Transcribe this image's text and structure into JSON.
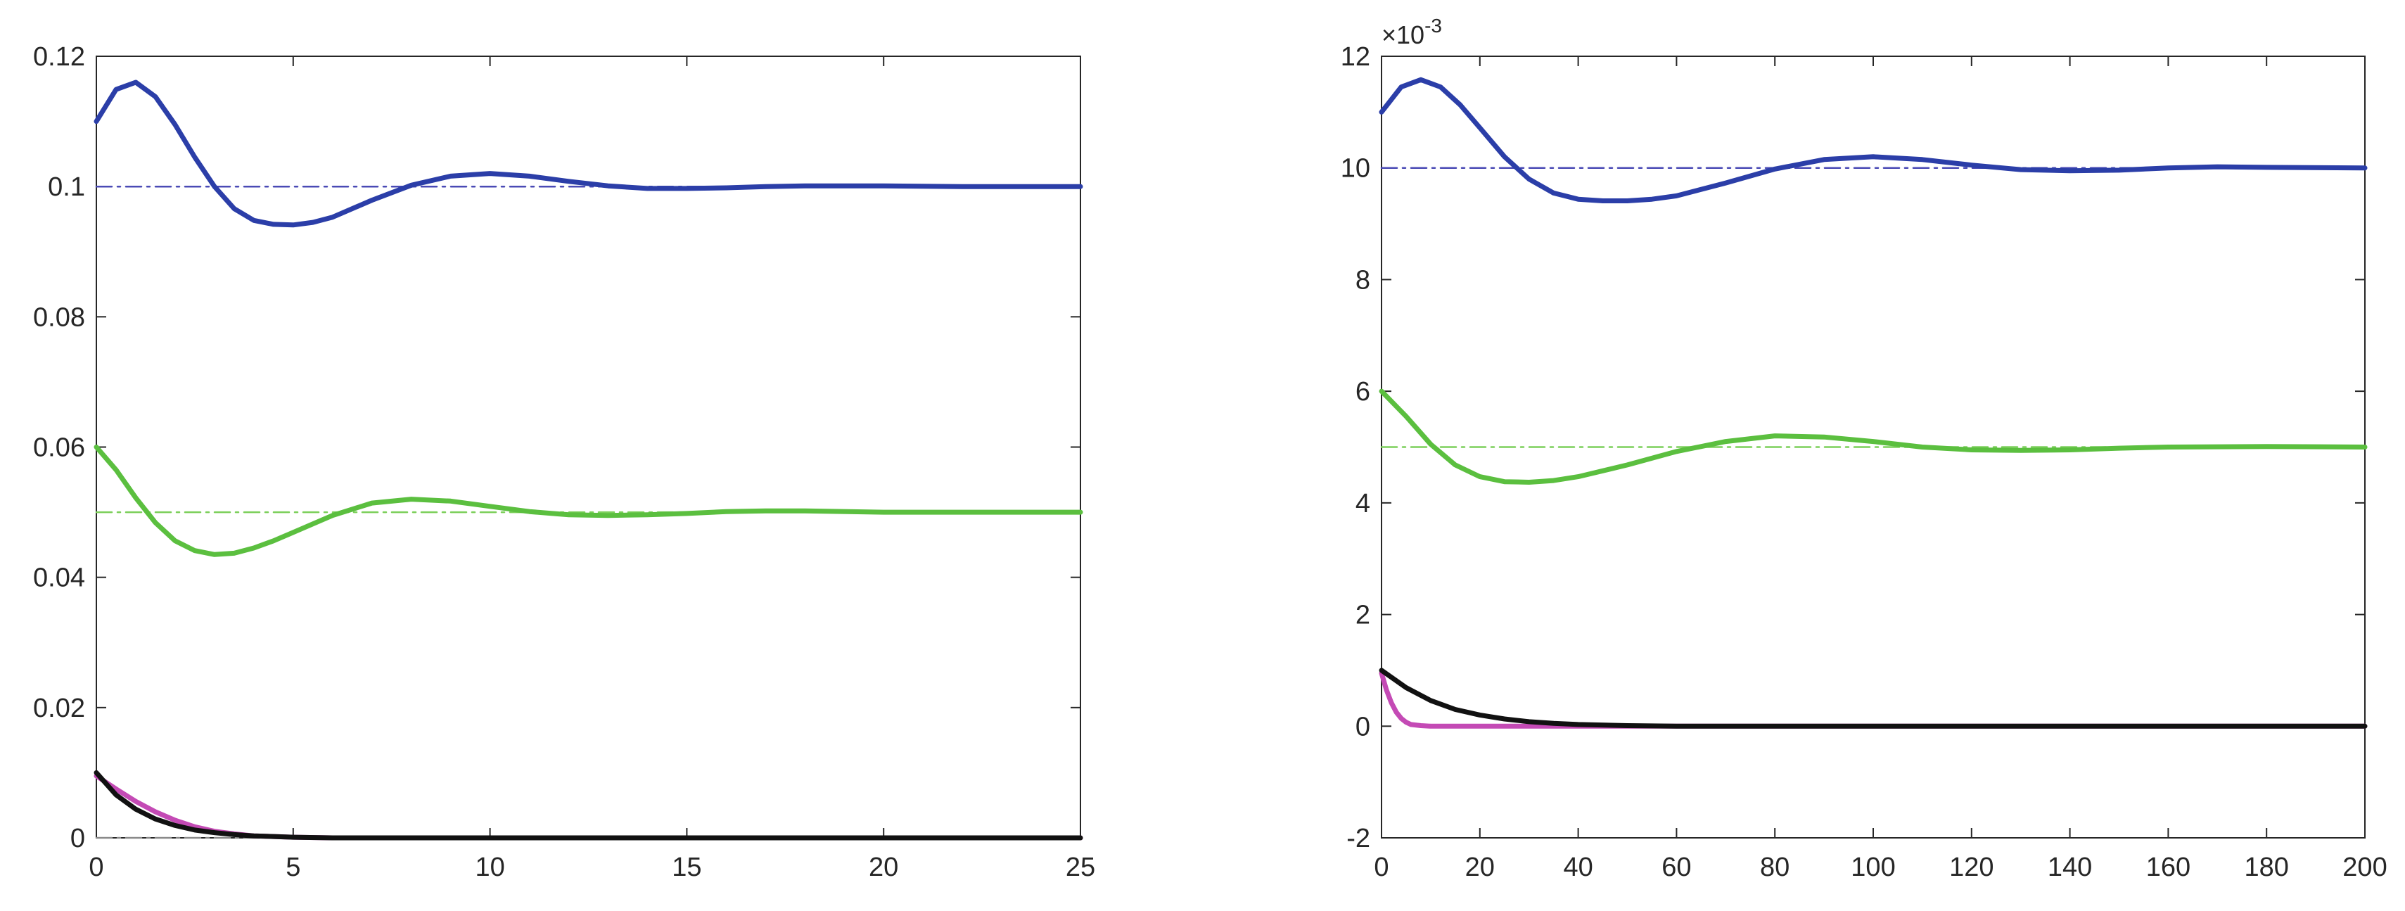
{
  "chart_data": [
    {
      "type": "line",
      "xlim": [
        0,
        25
      ],
      "ylim": [
        0,
        0.12
      ],
      "xticks": [
        0,
        5,
        10,
        15,
        20,
        25
      ],
      "xtick_labels": [
        "0",
        "5",
        "10",
        "15",
        "20",
        "25"
      ],
      "yticks": [
        0,
        0.02,
        0.04,
        0.06,
        0.08,
        0.1,
        0.12
      ],
      "ytick_labels": [
        "0",
        "0.02",
        "0.04",
        "0.06",
        "0.08",
        "0.1",
        "0.12"
      ],
      "grid": false,
      "series": [
        {
          "color": "#2b3ea8",
          "style": "solid",
          "x": [
            0,
            0.5,
            1,
            1.5,
            2,
            2.5,
            3,
            3.5,
            4,
            4.5,
            5,
            5.5,
            6,
            7,
            8,
            9,
            10,
            11,
            12,
            13,
            14,
            15,
            16,
            17,
            18,
            20,
            22,
            25
          ],
          "y": [
            0.11,
            0.1149,
            0.116,
            0.1138,
            0.1095,
            0.1045,
            0.1,
            0.0966,
            0.0948,
            0.0942,
            0.0941,
            0.0945,
            0.0953,
            0.0979,
            0.1002,
            0.1016,
            0.102,
            0.1016,
            0.1008,
            0.1001,
            0.0997,
            0.0997,
            0.0998,
            0.1,
            0.1001,
            0.1001,
            0.1,
            0.1
          ]
        },
        {
          "color": "#5bbf3f",
          "style": "solid",
          "x": [
            0,
            0.5,
            1,
            1.5,
            2,
            2.5,
            3,
            3.5,
            4,
            4.5,
            5,
            6,
            7,
            8,
            9,
            10,
            11,
            12,
            13,
            14,
            15,
            16,
            17,
            18,
            20,
            22,
            25
          ],
          "y": [
            0.06,
            0.0565,
            0.0522,
            0.0484,
            0.0456,
            0.0441,
            0.0435,
            0.0437,
            0.0445,
            0.0456,
            0.0469,
            0.0495,
            0.0514,
            0.052,
            0.0517,
            0.0509,
            0.0501,
            0.0496,
            0.0495,
            0.0496,
            0.0498,
            0.0501,
            0.0502,
            0.0502,
            0.05,
            0.05,
            0.05
          ]
        },
        {
          "color": "#c44ab5",
          "style": "solid",
          "x": [
            0,
            0.5,
            1,
            1.5,
            2,
            2.5,
            3,
            3.5,
            4,
            4.5,
            5,
            6,
            8,
            10,
            15,
            20,
            25
          ],
          "y": [
            0.0095,
            0.0075,
            0.0056,
            0.004,
            0.0027,
            0.0017,
            0.001,
            0.0006,
            0.0003,
            0.0002,
            0.0001,
            0,
            0,
            0,
            0,
            0,
            0
          ]
        },
        {
          "color": "#111111",
          "style": "solid",
          "x": [
            0,
            0.5,
            1,
            1.5,
            2,
            2.5,
            3,
            3.5,
            4,
            4.5,
            5,
            6,
            8,
            10,
            15,
            20,
            25
          ],
          "y": [
            0.01,
            0.0066,
            0.0044,
            0.0029,
            0.0019,
            0.0012,
            0.0008,
            0.0005,
            0.0003,
            0.0002,
            0.0001,
            0,
            0,
            0,
            0,
            0,
            0
          ]
        },
        {
          "color": "#4a4ab5",
          "style": "dashdot",
          "x": [
            0,
            25
          ],
          "y": [
            0.1,
            0.1
          ]
        },
        {
          "color": "#7ccf5a",
          "style": "dashdot",
          "x": [
            0,
            25
          ],
          "y": [
            0.05,
            0.05
          ]
        },
        {
          "color": "#8a8a8a",
          "style": "dashdot",
          "x": [
            0,
            25
          ],
          "y": [
            0,
            0
          ]
        }
      ]
    },
    {
      "type": "line",
      "xlim": [
        0,
        200
      ],
      "ylim": [
        -2,
        12
      ],
      "y_exponent_label": "×10",
      "y_exponent_power": "-3",
      "xticks": [
        0,
        20,
        40,
        60,
        80,
        100,
        120,
        140,
        160,
        180,
        200
      ],
      "xtick_labels": [
        "0",
        "20",
        "40",
        "60",
        "80",
        "100",
        "120",
        "140",
        "160",
        "180",
        "200"
      ],
      "yticks": [
        -2,
        0,
        2,
        4,
        6,
        8,
        10,
        12
      ],
      "ytick_labels": [
        "-2",
        "0",
        "2",
        "4",
        "6",
        "8",
        "10",
        "12"
      ],
      "grid": false,
      "series": [
        {
          "color": "#2b3ea8",
          "style": "solid",
          "x": [
            0,
            4,
            8,
            12,
            16,
            20,
            25,
            30,
            35,
            40,
            45,
            50,
            55,
            60,
            70,
            80,
            90,
            100,
            110,
            120,
            130,
            140,
            150,
            160,
            170,
            180,
            200
          ],
          "y": [
            11.0,
            11.45,
            11.58,
            11.45,
            11.13,
            10.72,
            10.2,
            9.8,
            9.55,
            9.44,
            9.41,
            9.41,
            9.44,
            9.5,
            9.73,
            9.98,
            10.15,
            10.2,
            10.15,
            10.05,
            9.97,
            9.95,
            9.96,
            10.0,
            10.02,
            10.01,
            10.0
          ]
        },
        {
          "color": "#5bbf3f",
          "style": "solid",
          "x": [
            0,
            5,
            10,
            15,
            20,
            25,
            30,
            35,
            40,
            50,
            60,
            70,
            80,
            90,
            100,
            110,
            120,
            130,
            140,
            150,
            160,
            180,
            200
          ],
          "y": [
            6.0,
            5.55,
            5.05,
            4.68,
            4.47,
            4.38,
            4.37,
            4.4,
            4.47,
            4.68,
            4.92,
            5.1,
            5.2,
            5.18,
            5.1,
            5.0,
            4.95,
            4.94,
            4.95,
            4.98,
            5.0,
            5.01,
            5.0
          ]
        },
        {
          "color": "#c44ab5",
          "style": "solid",
          "x": [
            0,
            1,
            2,
            3,
            4,
            5,
            6,
            8,
            10,
            20,
            40,
            100,
            200
          ],
          "y": [
            0.95,
            0.65,
            0.42,
            0.25,
            0.14,
            0.07,
            0.03,
            0.01,
            0.0,
            0.0,
            0.0,
            0.0,
            0.0
          ]
        },
        {
          "color": "#111111",
          "style": "solid",
          "x": [
            0,
            5,
            10,
            15,
            20,
            25,
            30,
            35,
            40,
            50,
            60,
            80,
            100,
            200
          ],
          "y": [
            1.0,
            0.69,
            0.46,
            0.3,
            0.2,
            0.13,
            0.08,
            0.05,
            0.03,
            0.01,
            0.0,
            0.0,
            0.0,
            0.0
          ]
        },
        {
          "color": "#4a4ab5",
          "style": "dashdot",
          "x": [
            0,
            200
          ],
          "y": [
            10,
            10
          ]
        },
        {
          "color": "#7ccf5a",
          "style": "dashdot",
          "x": [
            0,
            200
          ],
          "y": [
            5,
            5
          ]
        }
      ]
    }
  ]
}
